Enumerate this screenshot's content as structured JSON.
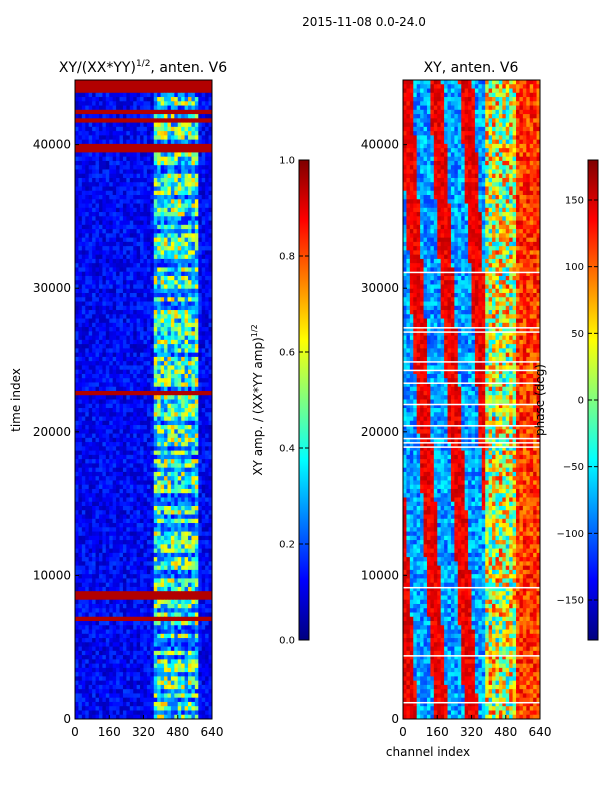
{
  "chart_data": [
    {
      "type": "heatmap",
      "suptitle": "2015-11-08 0.0-24.0",
      "title_prefix": "XY/(XX*YY)",
      "title_superscript": "1/2",
      "title_suffix": ", anten. V6",
      "xlabel": "",
      "ylabel": "time index",
      "xlim": [
        0,
        640
      ],
      "ylim": [
        0,
        44500
      ],
      "xticks": [
        0,
        160,
        320,
        480,
        640
      ],
      "yticks": [
        0,
        10000,
        20000,
        30000,
        40000
      ],
      "colorbar": {
        "label_prefix": "XY amp. / (XX*YY amp)",
        "label_superscript": "1/2",
        "range": [
          0.0,
          1.0
        ],
        "ticks": [
          "0.0",
          "0.2",
          "0.4",
          "0.6",
          "0.8",
          "1.0"
        ],
        "tick_values": [
          0.0,
          0.2,
          0.4,
          0.6,
          0.8,
          1.0
        ],
        "colormap": "jet"
      },
      "flagged_rows": [
        [
          43600,
          44500
        ],
        [
          39600,
          40100
        ],
        [
          8200,
          8900
        ],
        [
          42200,
          42400
        ]
      ]
    },
    {
      "type": "heatmap",
      "title": "XY, anten. V6",
      "xlabel": "channel index",
      "ylabel": "",
      "xlim": [
        0,
        640
      ],
      "ylim": [
        0,
        44500
      ],
      "xticks": [
        0,
        160,
        320,
        480,
        640
      ],
      "yticks": [
        0,
        10000,
        20000,
        30000,
        40000
      ],
      "colorbar": {
        "label": "phase (deg)",
        "range": [
          -180,
          180
        ],
        "ticks": [
          "150",
          "100",
          "50",
          "0",
          "−50",
          "−100",
          "−150"
        ],
        "tick_values": [
          150,
          100,
          50,
          0,
          -50,
          -100,
          -150
        ],
        "colormap": "jet"
      }
    }
  ]
}
